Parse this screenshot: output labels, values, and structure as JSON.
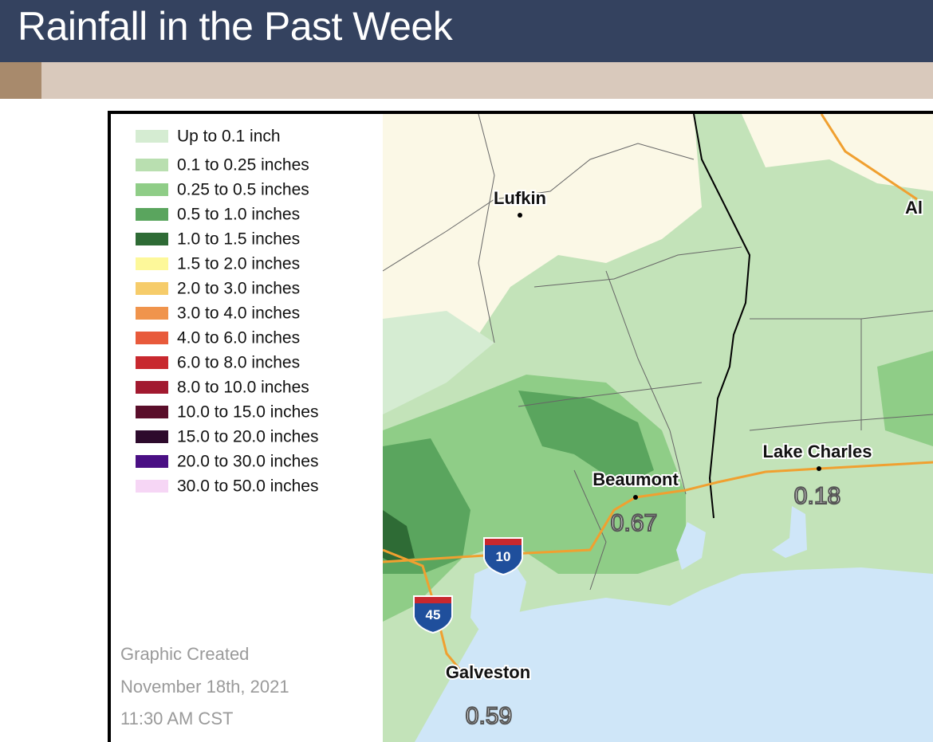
{
  "header": {
    "title": "Rainfall in the Past Week"
  },
  "legend": [
    {
      "label": "Up to 0.1 inch",
      "color": "#d5ecd2"
    },
    {
      "label": "0.1 to 0.25 inches",
      "color": "#b9dfb0"
    },
    {
      "label": "0.25 to 0.5 inches",
      "color": "#8fcd87"
    },
    {
      "label": "0.5 to 1.0 inches",
      "color": "#5aa55e"
    },
    {
      "label": "1.0 to 1.5 inches",
      "color": "#2e6b35"
    },
    {
      "label": "1.5 to 2.0 inches",
      "color": "#fdf89a"
    },
    {
      "label": "2.0 to 3.0 inches",
      "color": "#f6cc6a"
    },
    {
      "label": "3.0 to 4.0 inches",
      "color": "#f0944c"
    },
    {
      "label": "4.0 to 6.0 inches",
      "color": "#e85a3b"
    },
    {
      "label": "6.0 to 8.0 inches",
      "color": "#c8282e"
    },
    {
      "label": "8.0 to 10.0 inches",
      "color": "#a2192f"
    },
    {
      "label": "10.0 to 15.0 inches",
      "color": "#5a0e2a"
    },
    {
      "label": "15.0 to 20.0 inches",
      "color": "#2d0a2c"
    },
    {
      "label": "20.0 to 30.0 inches",
      "color": "#4a0f84"
    },
    {
      "label": "30.0 to 50.0 inches",
      "color": "#f6d6f5"
    }
  ],
  "footer": [
    "Graphic Created",
    "November 18th, 2021",
    "11:30 AM CST"
  ],
  "map": {
    "cities": [
      "Lufkin",
      "Al",
      "Lake Charles",
      "Beaumont",
      "Galveston"
    ],
    "rainfall": [
      "0.67",
      "0.18",
      "0.59"
    ],
    "highways": [
      "10",
      "45"
    ]
  }
}
